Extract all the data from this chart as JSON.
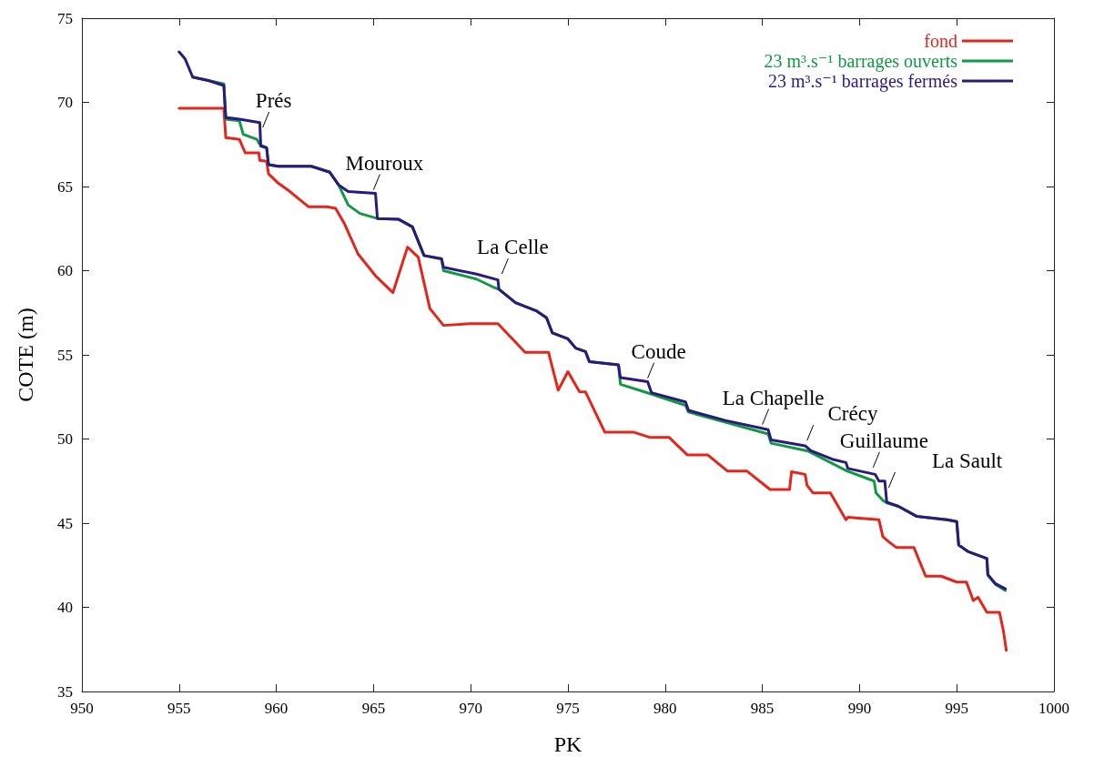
{
  "chart_data": {
    "type": "line",
    "xlabel": "PK",
    "ylabel": "COTE (m)",
    "xlim": [
      950,
      1000
    ],
    "xticks": [
      950,
      955,
      960,
      965,
      970,
      975,
      980,
      985,
      990,
      995,
      1000
    ],
    "ylim": [
      35,
      75
    ],
    "yticks": [
      35,
      40,
      45,
      50,
      55,
      60,
      65,
      70,
      75
    ],
    "grid": false,
    "legend": "top right",
    "line_style": "solid",
    "series": [
      {
        "name": "fond",
        "color": "#e3261c",
        "x": [
          955.0,
          957.3,
          957.4,
          958.1,
          958.4,
          959.1,
          959.15,
          959.5,
          959.6,
          960.1,
          960.7,
          961.65,
          962.6,
          963.05,
          963.5,
          964.2,
          965.1,
          966.0,
          966.75,
          967.3,
          967.9,
          968.6,
          970.0,
          971.4,
          972.8,
          974.0,
          974.5,
          975.0,
          975.6,
          975.9,
          976.9,
          978.4,
          979.2,
          980.2,
          981.15,
          982.2,
          983.2,
          984.2,
          985.4,
          986.4,
          986.5,
          987.2,
          987.3,
          987.6,
          988.5,
          989.3,
          989.4,
          991.0,
          991.2,
          991.5,
          991.9,
          992.8,
          993.4,
          994.2,
          995.0,
          995.5,
          995.85,
          996.1,
          996.55,
          997.2,
          997.4,
          997.55
        ],
        "values": [
          69.65,
          69.65,
          67.9,
          67.8,
          67.0,
          67.0,
          66.55,
          66.5,
          65.75,
          65.2,
          64.7,
          63.8,
          63.8,
          63.7,
          62.8,
          61.0,
          59.7,
          58.7,
          61.4,
          60.8,
          57.75,
          56.75,
          56.85,
          56.85,
          55.15,
          55.15,
          52.9,
          54.0,
          52.8,
          52.8,
          50.4,
          50.4,
          50.1,
          50.1,
          49.05,
          49.05,
          48.1,
          48.1,
          47.0,
          47.0,
          48.05,
          47.9,
          47.25,
          46.8,
          46.8,
          45.2,
          45.35,
          45.2,
          44.2,
          43.9,
          43.55,
          43.55,
          41.85,
          41.85,
          41.5,
          41.5,
          40.4,
          40.6,
          39.7,
          39.7,
          38.6,
          37.45
        ]
      },
      {
        "name": "23 m³.s⁻¹ barrages ouverts",
        "color": "#119944",
        "x": [
          955.7,
          956.5,
          957.3,
          957.4,
          958.1,
          958.3,
          959.0,
          959.15,
          959.5,
          959.6,
          960.1,
          961.8,
          962.75,
          963.2,
          963.7,
          964.3,
          965.2,
          966.3,
          967.0,
          967.6,
          968.5,
          968.6,
          970.3,
          971.2,
          971.45,
          972.3,
          973.4,
          973.9,
          974.2,
          975.0,
          975.4,
          975.9,
          976.1,
          977.6,
          977.7,
          979.2,
          981.05,
          981.2,
          983.1,
          985.3,
          985.45,
          987.3,
          987.5,
          989.35,
          990.75,
          990.85,
          991.2,
          991.4,
          992.0,
          992.95,
          994.5,
          995.0,
          995.1,
          995.6,
          996.55,
          996.6,
          997.0,
          997.5
        ],
        "values": [
          71.5,
          71.3,
          71.1,
          69.0,
          68.9,
          68.1,
          67.8,
          67.5,
          67.3,
          66.3,
          66.2,
          66.2,
          65.85,
          65.1,
          63.9,
          63.4,
          63.1,
          63.05,
          62.6,
          60.9,
          60.7,
          60.0,
          59.5,
          59.0,
          58.9,
          58.1,
          57.6,
          57.2,
          56.3,
          55.95,
          55.4,
          55.2,
          54.6,
          54.4,
          53.25,
          52.7,
          52.0,
          51.6,
          51.0,
          50.3,
          49.75,
          49.3,
          49.2,
          48.1,
          47.5,
          46.8,
          46.35,
          46.2,
          46.0,
          45.4,
          45.2,
          45.1,
          43.7,
          43.3,
          42.9,
          41.9,
          41.35,
          41.0
        ]
      },
      {
        "name": "23 m³.s⁻¹ barrages fermés",
        "color": "#2a1a7e",
        "x": [
          955.0,
          955.3,
          955.7,
          956.5,
          957.3,
          957.4,
          958.1,
          959.15,
          959.2,
          959.5,
          959.6,
          960.1,
          961.8,
          962.75,
          963.2,
          963.7,
          965.1,
          965.2,
          966.3,
          967.0,
          967.6,
          968.5,
          968.6,
          970.3,
          971.4,
          971.45,
          972.3,
          973.4,
          973.9,
          974.2,
          975.0,
          975.4,
          975.9,
          976.1,
          977.6,
          977.7,
          979.1,
          979.3,
          981.05,
          981.2,
          983.1,
          985.3,
          985.45,
          987.2,
          987.5,
          988.6,
          989.3,
          989.4,
          990.8,
          991.0,
          991.3,
          991.4,
          992.0,
          992.95,
          994.5,
          995.0,
          995.1,
          995.6,
          996.55,
          996.6,
          997.0,
          997.5
        ],
        "values": [
          73.0,
          72.6,
          71.5,
          71.3,
          71.0,
          69.1,
          69.0,
          68.8,
          67.4,
          67.3,
          66.3,
          66.2,
          66.2,
          65.85,
          65.1,
          64.7,
          64.6,
          63.1,
          63.05,
          62.6,
          60.9,
          60.7,
          60.2,
          59.8,
          59.45,
          58.9,
          58.1,
          57.6,
          57.2,
          56.3,
          55.95,
          55.4,
          55.2,
          54.6,
          54.4,
          53.65,
          53.4,
          52.75,
          52.2,
          51.7,
          51.1,
          50.55,
          49.95,
          49.6,
          49.3,
          48.8,
          48.6,
          48.25,
          47.9,
          47.5,
          47.5,
          46.25,
          46.0,
          45.4,
          45.2,
          45.1,
          43.7,
          43.3,
          42.9,
          41.95,
          41.4,
          41.1
        ]
      }
    ],
    "annotations": [
      {
        "text": "Prés",
        "x": 959.3,
        "y": 68.4
      },
      {
        "text": "Mouroux",
        "x": 965.0,
        "y": 64.7
      },
      {
        "text": "La Celle",
        "x": 971.6,
        "y": 59.7
      },
      {
        "text": "Coude",
        "x": 979.1,
        "y": 53.5
      },
      {
        "text": "La Chapelle",
        "x": 985.0,
        "y": 50.75
      },
      {
        "text": "Crécy",
        "x": 987.3,
        "y": 49.8
      },
      {
        "text": "Guillaume",
        "x": 990.7,
        "y": 48.2
      },
      {
        "text": "La Sault",
        "x": 991.5,
        "y": 47.0
      }
    ]
  }
}
